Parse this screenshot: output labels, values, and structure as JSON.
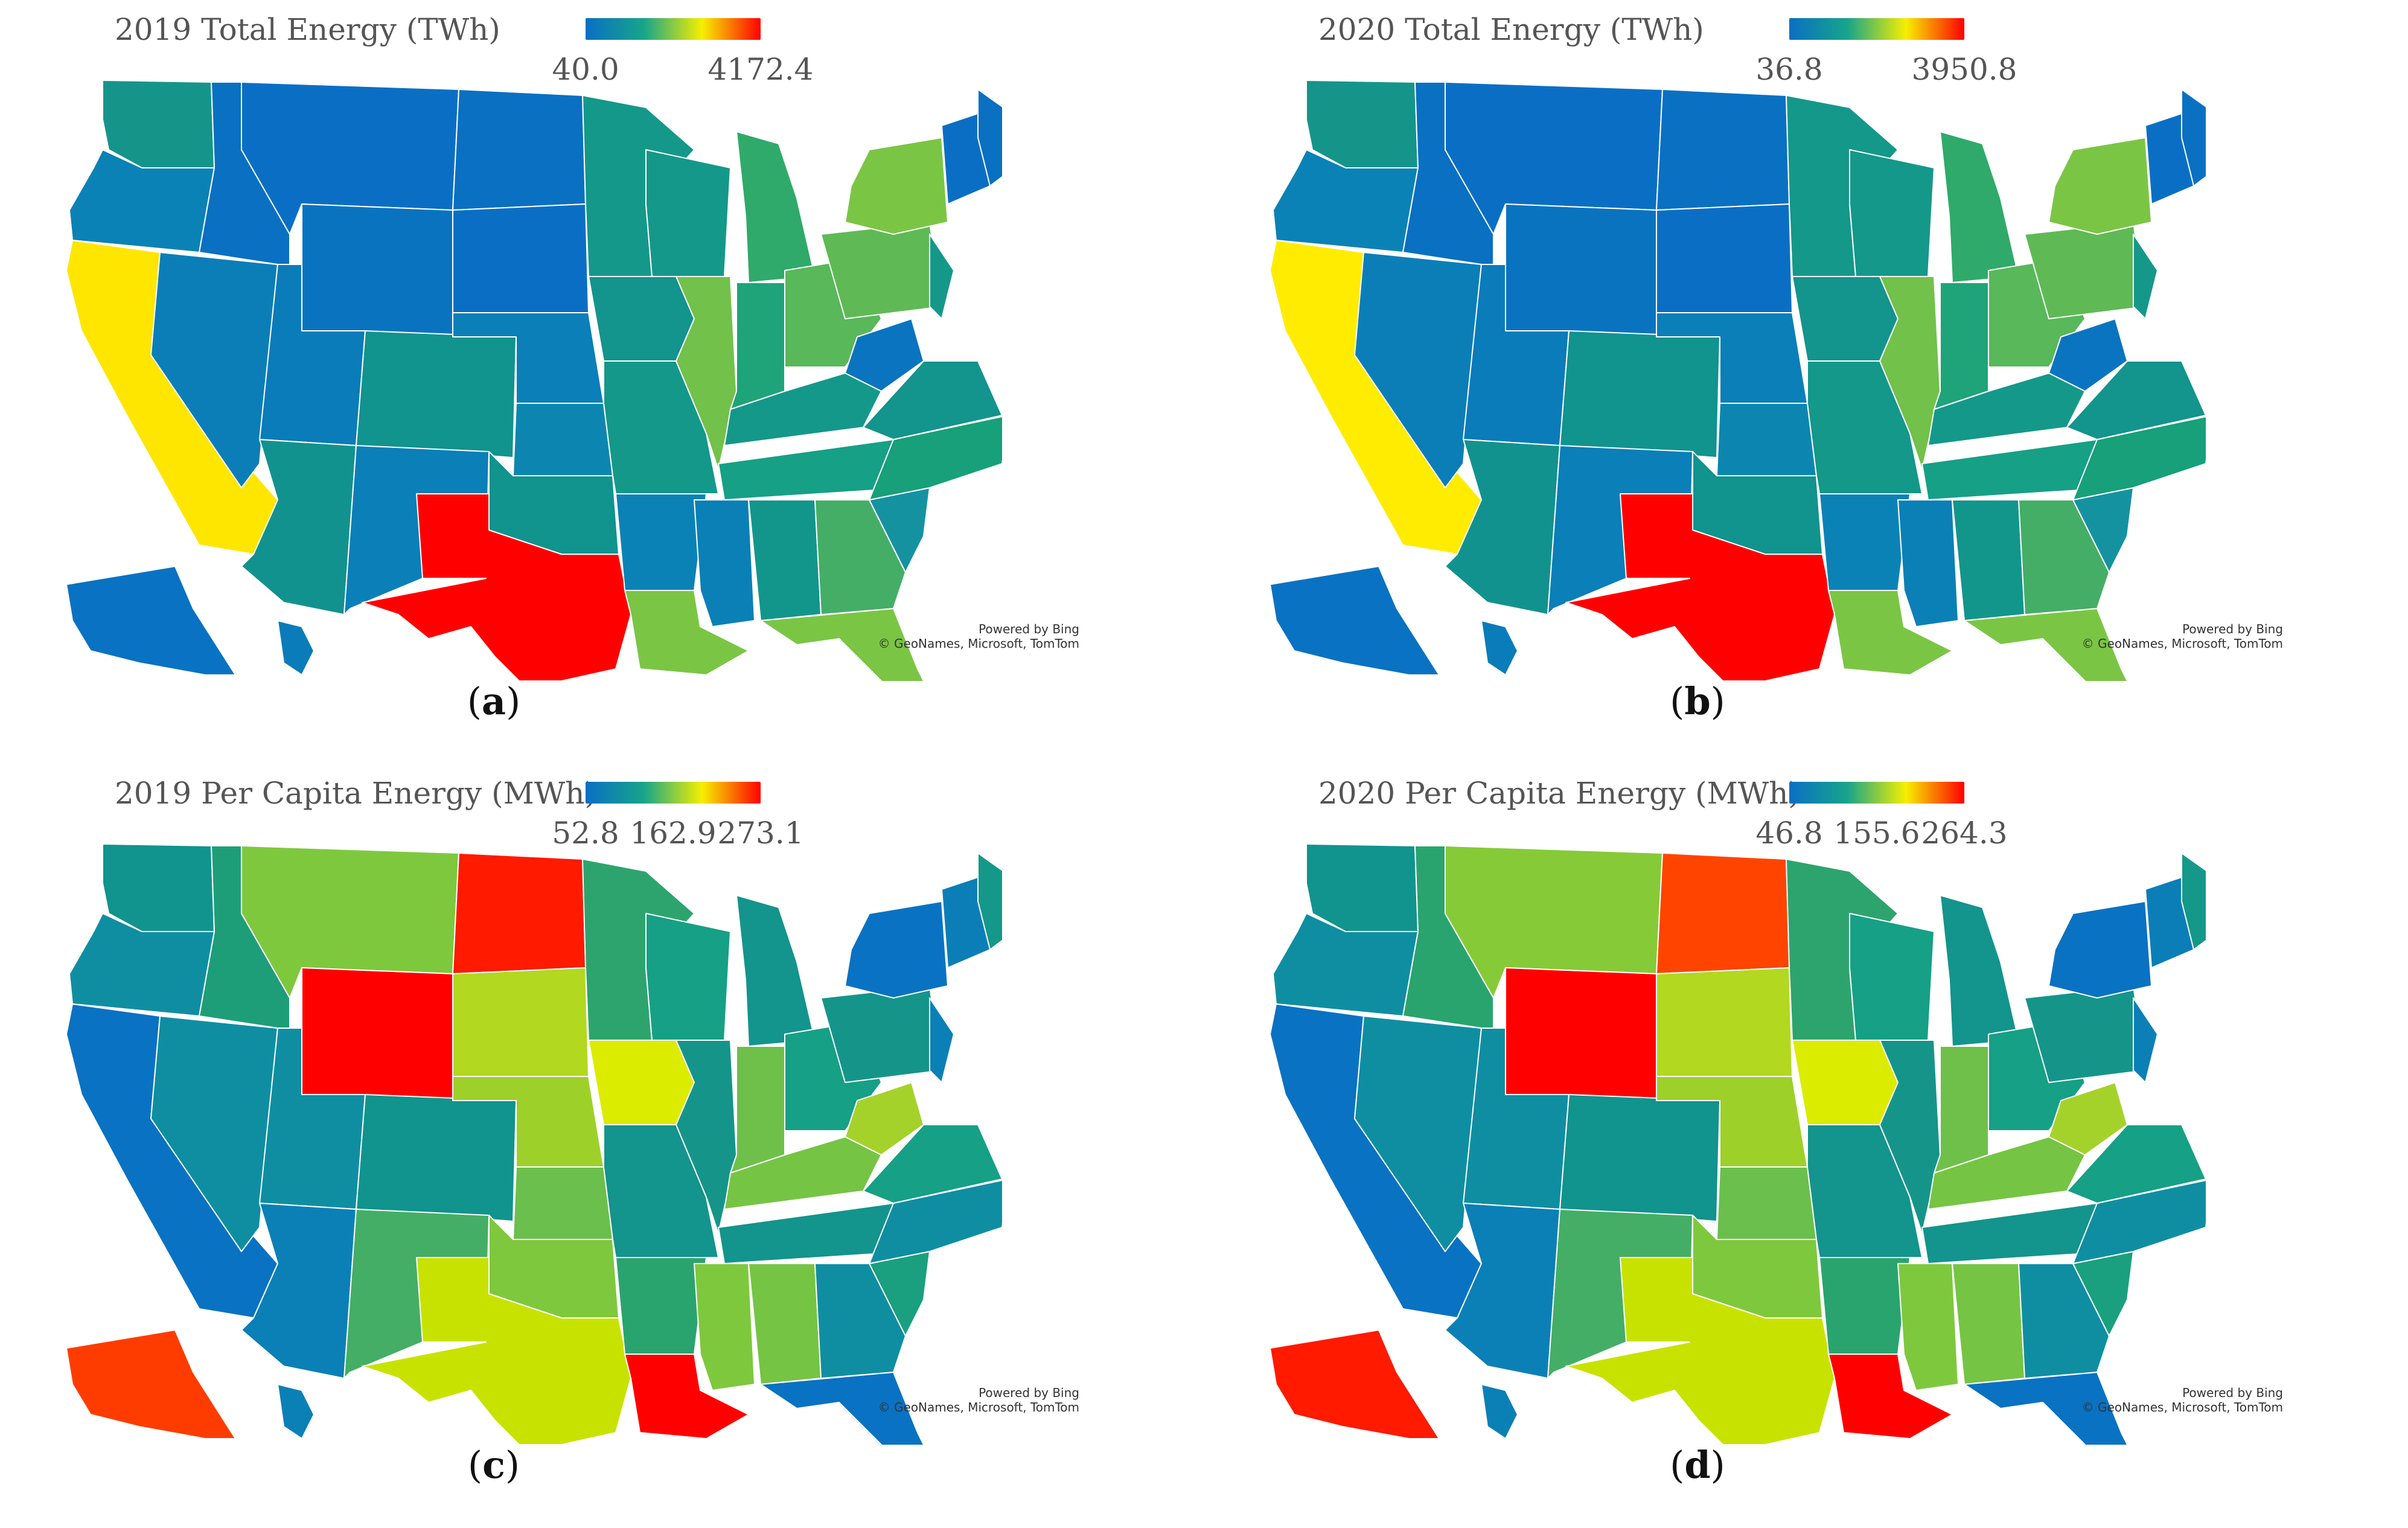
{
  "attribution": {
    "line1": "Powered by Bing",
    "line2": "© GeoNames, Microsoft, TomTom"
  },
  "panels": [
    {
      "id": "a",
      "title": "2019 Total Energy (TWh)",
      "legend": {
        "min": "40.0",
        "mid": "",
        "max": "4172.4",
        "colors": [
          "#0a6fc4",
          "#17a58a",
          "#f6ef00",
          "#ff0000"
        ]
      },
      "label_open": "(",
      "label": "a",
      "label_close": ")",
      "states": {
        "WA": "#15958a",
        "OR": "#0b82b5",
        "CA": "#ffe600",
        "NV": "#0b7eb8",
        "ID": "#0a70c2",
        "MT": "#0a6fc4",
        "WY": "#0a73c0",
        "UT": "#0a7cba",
        "AZ": "#12928e",
        "CO": "#11938e",
        "NM": "#0b7fb8",
        "ND": "#0a70c2",
        "SD": "#0a6fc4",
        "NE": "#0b7fb8",
        "KS": "#0c86b0",
        "OK": "#11938e",
        "TX": "#ff0000",
        "MN": "#14988a",
        "IA": "#13948c",
        "MO": "#14988a",
        "AR": "#0b82b5",
        "LA": "#7bc545",
        "WI": "#14988a",
        "IL": "#72c14a",
        "MI": "#2faa6a",
        "IN": "#1ea478",
        "OH": "#58b85a",
        "KY": "#14988a",
        "TN": "#16a086",
        "MS": "#0b80b6",
        "AL": "#12968c",
        "GA": "#44ae66",
        "FL": "#7bc545",
        "SC": "#1592a0",
        "NC": "#17a07a",
        "VA": "#13948c",
        "WV": "#0b74c0",
        "PA": "#5fba55",
        "NY": "#7bc545",
        "VT": "#0a6fc4",
        "ME": "#0a70c2",
        "NJ": "#15988a",
        "AK": "#0a72c2",
        "HI": "#0a7cba"
      }
    },
    {
      "id": "b",
      "title": "2020 Total Energy (TWh)",
      "legend": {
        "min": "36.8",
        "mid": "",
        "max": "3950.8",
        "colors": [
          "#0a6fc4",
          "#17a58a",
          "#f6ef00",
          "#ff0000"
        ]
      },
      "label_open": "(",
      "label": "b",
      "label_close": ")",
      "states": {
        "WA": "#15958a",
        "OR": "#0b82b5",
        "CA": "#ffec00",
        "NV": "#0b7eb8",
        "ID": "#0a70c2",
        "MT": "#0a6fc4",
        "WY": "#0a73c0",
        "UT": "#0a7cba",
        "AZ": "#12928e",
        "CO": "#11938e",
        "NM": "#0b7fb8",
        "ND": "#0a70c2",
        "SD": "#0a6fc4",
        "NE": "#0b7fb8",
        "KS": "#0c86b0",
        "OK": "#11938e",
        "TX": "#ff0000",
        "MN": "#14988a",
        "IA": "#13948c",
        "MO": "#14988a",
        "AR": "#0b82b5",
        "LA": "#7bc545",
        "WI": "#14988a",
        "IL": "#72c14a",
        "MI": "#2faa6a",
        "IN": "#1ea478",
        "OH": "#58b85a",
        "KY": "#14988a",
        "TN": "#16a086",
        "MS": "#0b80b6",
        "AL": "#12968c",
        "GA": "#44ae66",
        "FL": "#7bc545",
        "SC": "#1592a0",
        "NC": "#17a07a",
        "VA": "#13948c",
        "WV": "#0b74c0",
        "PA": "#5fba55",
        "NY": "#7bc545",
        "VT": "#0a6fc4",
        "ME": "#0a70c2",
        "NJ": "#15988a",
        "AK": "#0a72c2",
        "HI": "#0a7cba"
      }
    },
    {
      "id": "c",
      "title": "2019 Per Capita Energy (MWh)",
      "legend": {
        "min": "52.8",
        "mid": "162.9",
        "max": "273.1",
        "colors": [
          "#0a6fc4",
          "#17a58a",
          "#f6ef00",
          "#ff0000"
        ]
      },
      "label_open": "(",
      "label": "c",
      "label_close": ")",
      "states": {
        "WA": "#11938e",
        "OR": "#0f8ea2",
        "CA": "#0a72c2",
        "NV": "#0f8ea2",
        "ID": "#1e9e78",
        "MT": "#7ec83e",
        "WY": "#ff0000",
        "UT": "#0f8ea2",
        "AZ": "#0b80b6",
        "CO": "#11938e",
        "NM": "#44ae66",
        "ND": "#ff1a00",
        "SD": "#b2d820",
        "NE": "#9ed02a",
        "KS": "#6bbf4c",
        "OK": "#7ec83e",
        "TX": "#c8e200",
        "MN": "#2da46e",
        "IA": "#dcec00",
        "MO": "#13948c",
        "AR": "#2aa46e",
        "LA": "#ff0000",
        "WI": "#16a086",
        "IL": "#15958a",
        "MI": "#13948c",
        "IN": "#6fc04a",
        "OH": "#16a086",
        "KY": "#76c444",
        "TN": "#13948c",
        "MS": "#7ec83e",
        "AL": "#76c444",
        "GA": "#0f8ea2",
        "FL": "#0a72c2",
        "SC": "#1aa07e",
        "NC": "#0f8ea2",
        "VA": "#16a086",
        "WV": "#a5d22a",
        "PA": "#15958a",
        "NY": "#0a72c2",
        "VT": "#0b7eb8",
        "ME": "#14988a",
        "NJ": "#0b80b6",
        "AK": "#ff3c00",
        "HI": "#0b80b6"
      }
    },
    {
      "id": "d",
      "title": "2020 Per Capita Energy (MWh)",
      "legend": {
        "min": "46.8",
        "mid": "155.6",
        "max": "264.3",
        "colors": [
          "#0a6fc4",
          "#17a58a",
          "#f6ef00",
          "#ff0000"
        ]
      },
      "label_open": "(",
      "label": "d",
      "label_close": ")",
      "states": {
        "WA": "#11938e",
        "OR": "#0f8ea2",
        "CA": "#0a72c2",
        "NV": "#0f8ea2",
        "ID": "#2aa46e",
        "MT": "#86ca38",
        "WY": "#ff0000",
        "UT": "#0f8ea2",
        "AZ": "#0b80b6",
        "CO": "#11938e",
        "NM": "#44ae66",
        "ND": "#ff4400",
        "SD": "#b2d820",
        "NE": "#9ed02a",
        "KS": "#6bbf4c",
        "OK": "#7ec83e",
        "TX": "#c8e200",
        "MN": "#2da46e",
        "IA": "#dcec00",
        "MO": "#13948c",
        "AR": "#2aa46e",
        "LA": "#ff0000",
        "WI": "#16a086",
        "IL": "#15958a",
        "MI": "#13948c",
        "IN": "#6fc04a",
        "OH": "#16a086",
        "KY": "#76c444",
        "TN": "#13948c",
        "MS": "#7ec83e",
        "AL": "#76c444",
        "GA": "#0f8ea2",
        "FL": "#0a72c2",
        "SC": "#1aa07e",
        "NC": "#0f8ea2",
        "VA": "#16a086",
        "WV": "#a5d22a",
        "PA": "#15958a",
        "NY": "#0a72c2",
        "VT": "#0b7eb8",
        "ME": "#14988a",
        "NJ": "#0b80b6",
        "AK": "#ff1a00",
        "HI": "#0b80b6"
      }
    }
  ]
}
